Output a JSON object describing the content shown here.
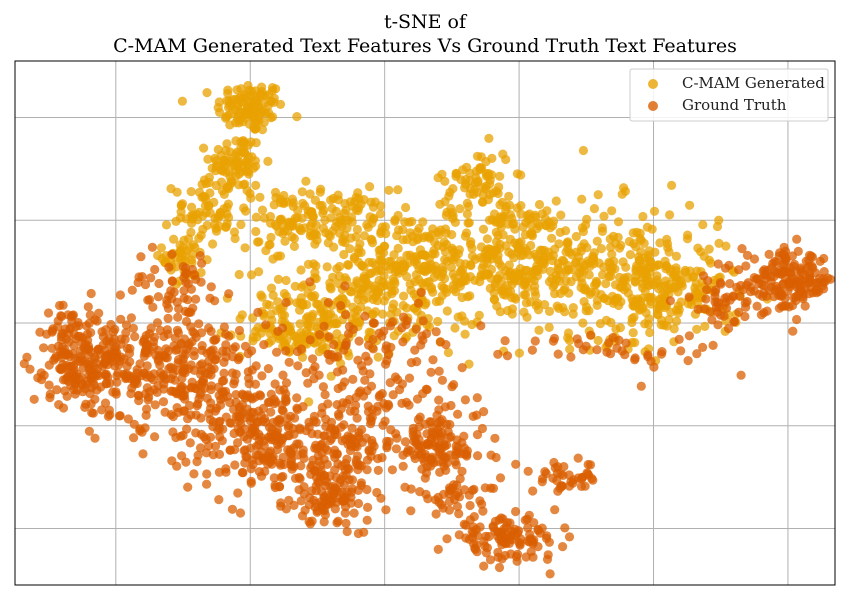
{
  "chart_data": {
    "type": "scatter",
    "title_line1": "t-SNE of",
    "title_line2": "C-MAM Generated Text Features Vs Ground Truth Text Features",
    "xlabel": "",
    "ylabel": "",
    "xlim": [
      -55,
      67
    ],
    "ylim": [
      -51,
      51
    ],
    "grid": true,
    "legend_position": "top-right",
    "series": [
      {
        "name": "C-MAM Generated",
        "color": "#E8A202",
        "clusters": [
          {
            "x": -20,
            "y": 42,
            "sx": 2.5,
            "sy": 2.5,
            "n": 110
          },
          {
            "x": -22,
            "y": 31,
            "sx": 2.0,
            "sy": 3.0,
            "n": 80
          },
          {
            "x": -27,
            "y": 22,
            "sx": 2.2,
            "sy": 3.5,
            "n": 60
          },
          {
            "x": -30,
            "y": 13,
            "sx": 1.5,
            "sy": 3.5,
            "n": 45
          },
          {
            "x": -11,
            "y": 20,
            "sx": 6.0,
            "sy": 3.0,
            "n": 160
          },
          {
            "x": -8,
            "y": 2,
            "sx": 6.5,
            "sy": 4.5,
            "n": 200
          },
          {
            "x": 3,
            "y": 10,
            "sx": 7.0,
            "sy": 6.0,
            "n": 230
          },
          {
            "x": 18,
            "y": 13,
            "sx": 7.0,
            "sy": 6.0,
            "n": 260
          },
          {
            "x": 34,
            "y": 10,
            "sx": 8.0,
            "sy": 6.5,
            "n": 300
          },
          {
            "x": 14,
            "y": 28,
            "sx": 2.5,
            "sy": 3.0,
            "n": 60
          },
          {
            "x": 44,
            "y": 5,
            "sx": 4.5,
            "sy": 4.0,
            "n": 110
          },
          {
            "x": -14,
            "y": -3,
            "sx": 3.0,
            "sy": 1.5,
            "n": 40
          }
        ]
      },
      {
        "name": "Ground Truth",
        "color": "#D95F02",
        "clusters": [
          {
            "x": -46,
            "y": -8,
            "sx": 3.5,
            "sy": 4.0,
            "n": 120
          },
          {
            "x": -38,
            "y": -8,
            "sx": 5.0,
            "sy": 5.0,
            "n": 180
          },
          {
            "x": -27,
            "y": -12,
            "sx": 6.0,
            "sy": 6.0,
            "n": 200
          },
          {
            "x": -30,
            "y": 7,
            "sx": 4.0,
            "sy": 4.0,
            "n": 60
          },
          {
            "x": -18,
            "y": -23,
            "sx": 5.5,
            "sy": 5.5,
            "n": 200
          },
          {
            "x": -6,
            "y": -26,
            "sx": 5.5,
            "sy": 6.0,
            "n": 180
          },
          {
            "x": -8,
            "y": -34,
            "sx": 3.0,
            "sy": 2.5,
            "n": 60
          },
          {
            "x": 8,
            "y": -24,
            "sx": 3.5,
            "sy": 3.0,
            "n": 100
          },
          {
            "x": 11,
            "y": -34,
            "sx": 3.0,
            "sy": 2.0,
            "n": 40
          },
          {
            "x": 18,
            "y": -42,
            "sx": 4.0,
            "sy": 2.0,
            "n": 110
          },
          {
            "x": 27,
            "y": -30,
            "sx": 2.5,
            "sy": 1.5,
            "n": 40
          },
          {
            "x": 60,
            "y": 8,
            "sx": 3.5,
            "sy": 2.8,
            "n": 170
          },
          {
            "x": 50,
            "y": 4,
            "sx": 3.0,
            "sy": 2.5,
            "n": 40
          },
          {
            "x": -4,
            "y": -4,
            "sx": 8.0,
            "sy": 4.0,
            "n": 90
          },
          {
            "x": -45,
            "y": -2,
            "sx": 2.5,
            "sy": 3.0,
            "n": 40
          },
          {
            "x": 0,
            "y": -15,
            "sx": 8.0,
            "sy": 4.0,
            "n": 60
          },
          {
            "x": 40,
            "y": -6,
            "sx": 5.0,
            "sy": 2.0,
            "n": 25
          },
          {
            "x": 28,
            "y": -4,
            "sx": 4.0,
            "sy": 1.5,
            "n": 15
          }
        ]
      }
    ]
  }
}
